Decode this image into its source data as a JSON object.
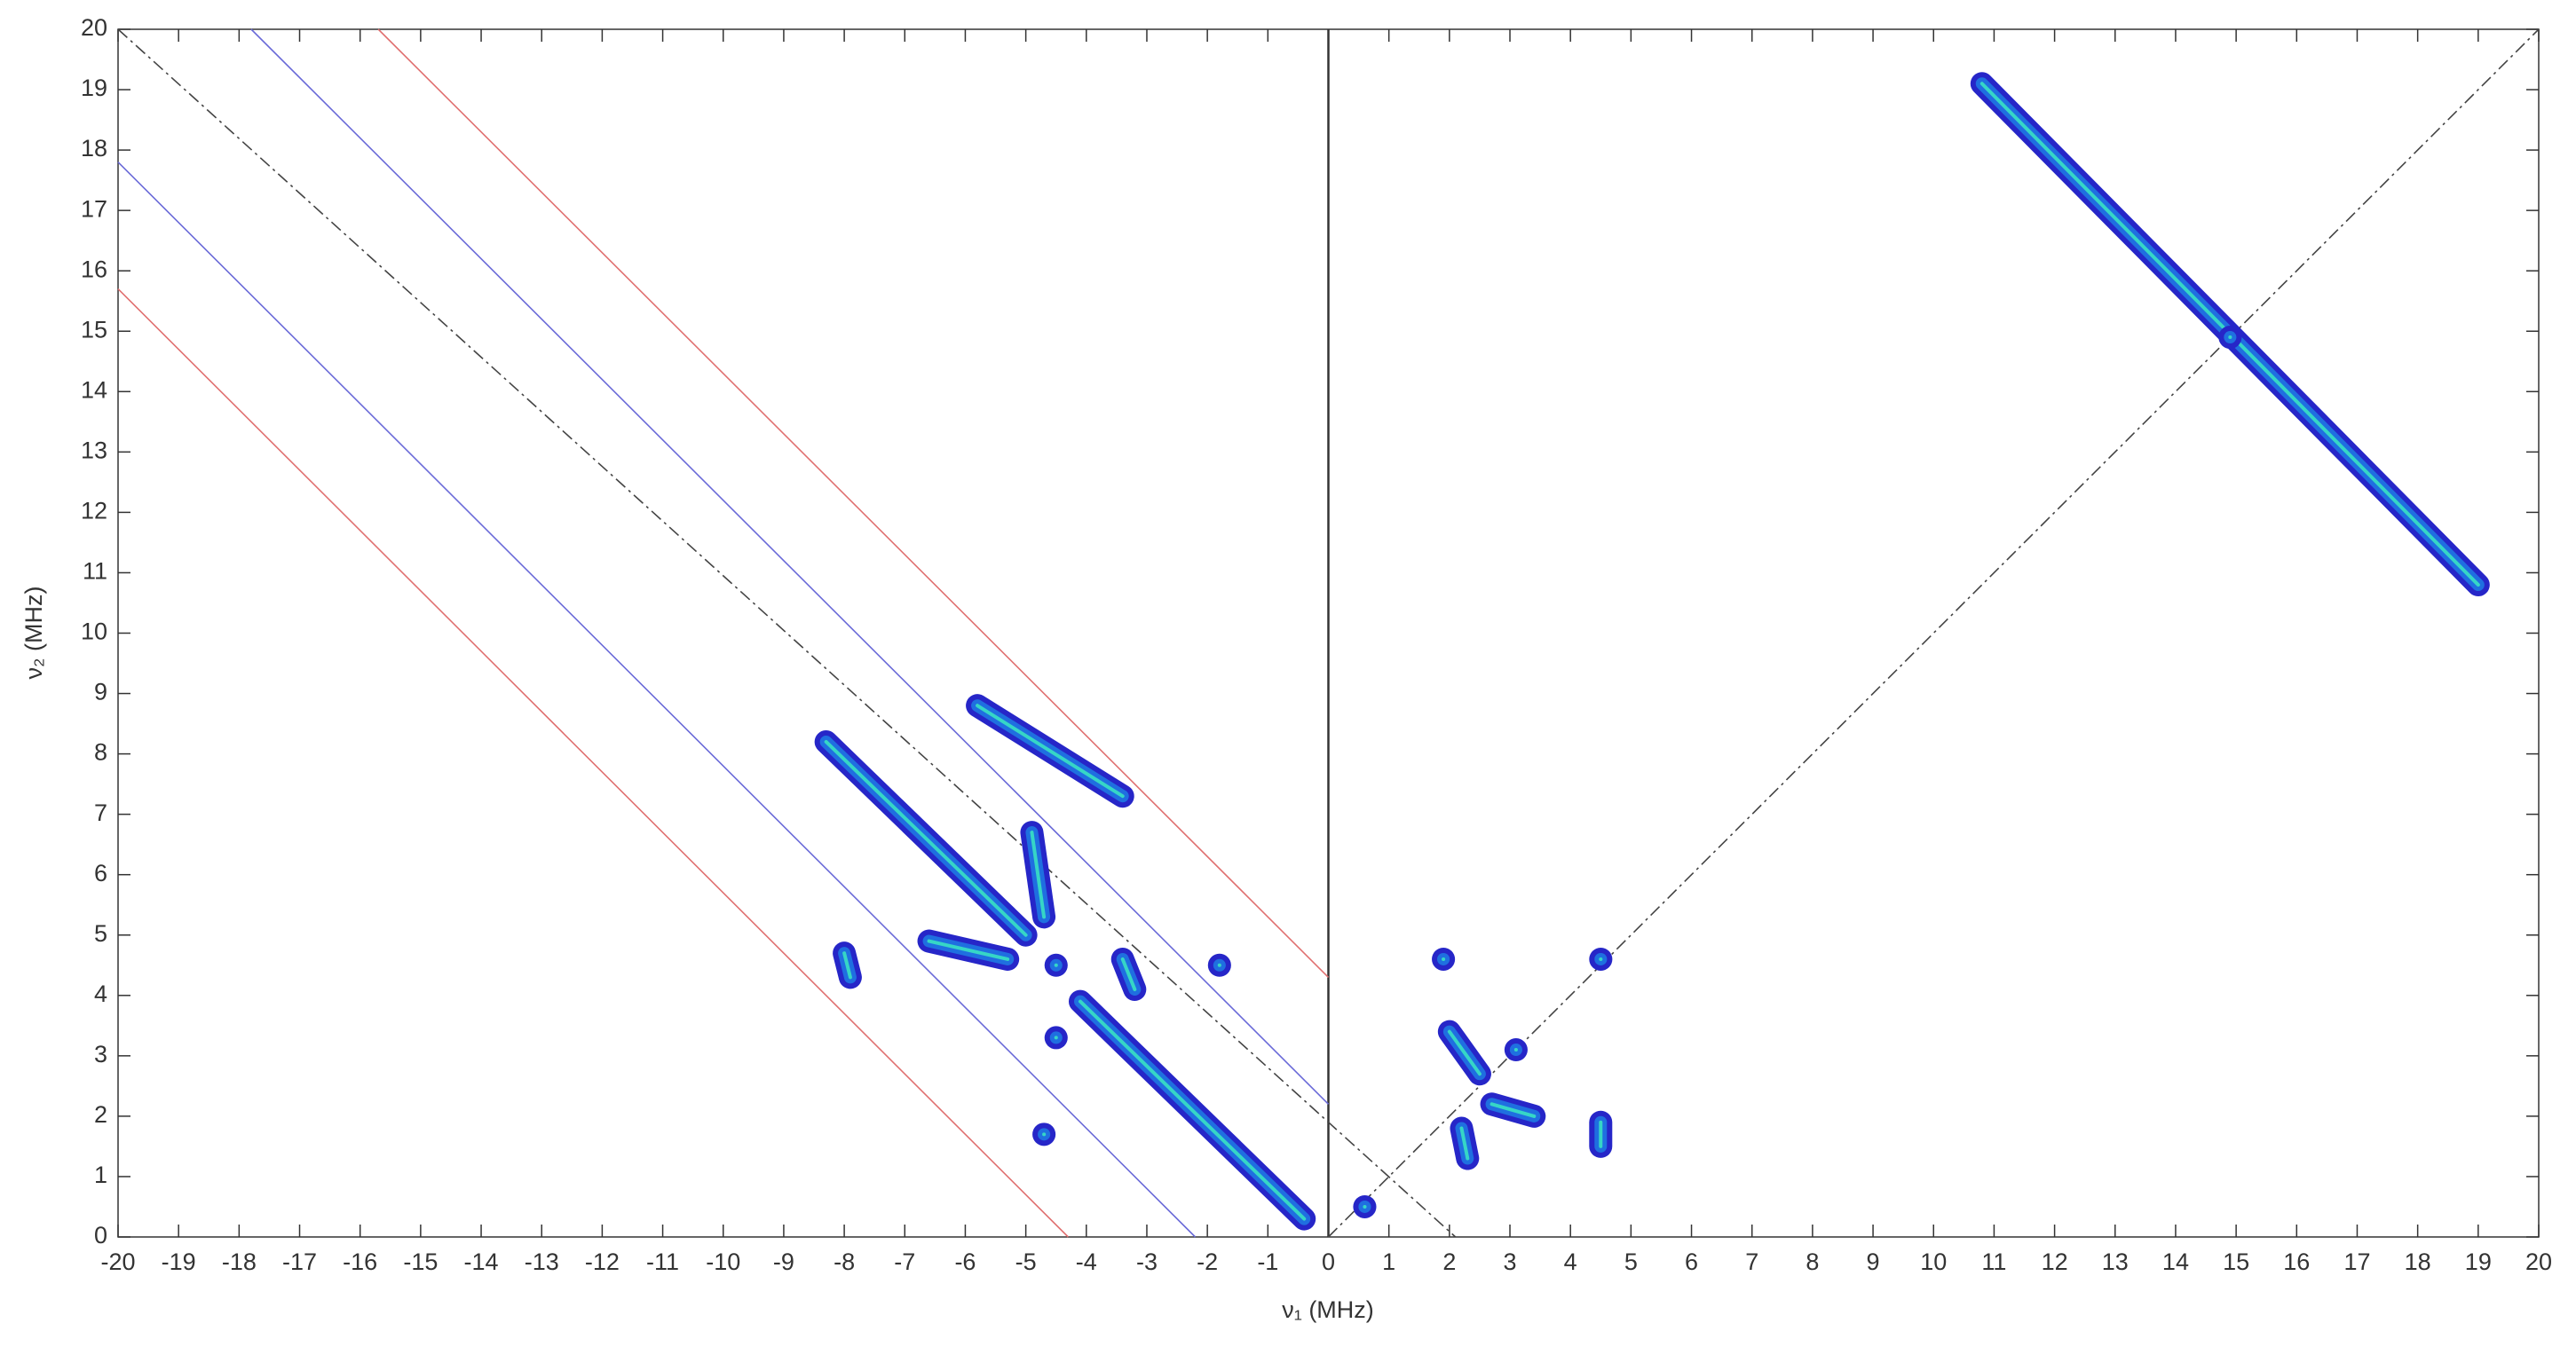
{
  "chart_data": {
    "type": "contour",
    "xlabel": "ν₁ (MHz)",
    "ylabel": "ν₂ (MHz)",
    "xlim": [
      -20,
      20
    ],
    "ylim": [
      0,
      20
    ],
    "xticks": [
      -20,
      -19,
      -18,
      -17,
      -16,
      -15,
      -14,
      -13,
      -12,
      -11,
      -10,
      -9,
      -8,
      -7,
      -6,
      -5,
      -4,
      -3,
      -2,
      -1,
      0,
      1,
      2,
      3,
      4,
      5,
      6,
      7,
      8,
      9,
      10,
      11,
      12,
      13,
      14,
      15,
      16,
      17,
      18,
      19,
      20
    ],
    "yticks": [
      0,
      1,
      2,
      3,
      4,
      5,
      6,
      7,
      8,
      9,
      10,
      11,
      12,
      13,
      14,
      15,
      16,
      17,
      18,
      19,
      20
    ],
    "reference_lines": [
      {
        "x": [
          0,
          0
        ],
        "y": [
          0,
          20
        ],
        "color": "#333333",
        "style": "solid"
      },
      {
        "x": [
          -20,
          2.1
        ],
        "y": [
          20,
          0
        ],
        "color": "#444444",
        "style": "dashdot"
      },
      {
        "x": [
          0,
          20
        ],
        "y": [
          0,
          20
        ],
        "color": "#444444",
        "style": "dashdot"
      },
      {
        "x": [
          -17.8,
          0
        ],
        "y": [
          20,
          2.2
        ],
        "color": "#6a6ad8",
        "style": "solid"
      },
      {
        "x": [
          -20,
          -2.2
        ],
        "y": [
          17.8,
          0
        ],
        "color": "#6a6ad8",
        "style": "solid"
      },
      {
        "x": [
          -15.7,
          0
        ],
        "y": [
          20,
          4.3
        ],
        "color": "#e07070",
        "style": "solid"
      },
      {
        "x": [
          -20,
          -4.3
        ],
        "y": [
          15.7,
          0
        ],
        "color": "#e07070",
        "style": "solid"
      }
    ],
    "peaks": [
      {
        "x": [
          10.8,
          19.0
        ],
        "y": [
          19.1,
          10.8
        ]
      },
      {
        "x": [
          14.9
        ],
        "y": [
          14.9
        ]
      },
      {
        "x": [
          -8.3,
          -5.0
        ],
        "y": [
          8.2,
          5.0
        ]
      },
      {
        "x": [
          -5.8,
          -3.4
        ],
        "y": [
          8.8,
          7.3
        ]
      },
      {
        "x": [
          -4.9,
          -4.7
        ],
        "y": [
          6.7,
          5.3
        ]
      },
      {
        "x": [
          -6.6,
          -5.3
        ],
        "y": [
          4.9,
          4.6
        ]
      },
      {
        "x": [
          -4.5
        ],
        "y": [
          4.5
        ]
      },
      {
        "x": [
          -3.4,
          -3.2
        ],
        "y": [
          4.6,
          4.1
        ]
      },
      {
        "x": [
          -1.8
        ],
        "y": [
          4.5
        ]
      },
      {
        "x": [
          -4.1,
          -0.4
        ],
        "y": [
          3.9,
          0.3
        ]
      },
      {
        "x": [
          -8.0,
          -7.9
        ],
        "y": [
          4.7,
          4.3
        ]
      },
      {
        "x": [
          -4.5
        ],
        "y": [
          3.3
        ]
      },
      {
        "x": [
          -4.7
        ],
        "y": [
          1.7
        ]
      },
      {
        "x": [
          0.6
        ],
        "y": [
          0.5
        ]
      },
      {
        "x": [
          2.0,
          2.5
        ],
        "y": [
          3.4,
          2.7
        ]
      },
      {
        "x": [
          3.1
        ],
        "y": [
          3.1
        ]
      },
      {
        "x": [
          2.7,
          3.4
        ],
        "y": [
          2.2,
          2.0
        ]
      },
      {
        "x": [
          1.9
        ],
        "y": [
          4.6
        ]
      },
      {
        "x": [
          4.5
        ],
        "y": [
          4.6
        ]
      },
      {
        "x": [
          4.5,
          4.5
        ],
        "y": [
          1.9,
          1.5
        ]
      },
      {
        "x": [
          2.2,
          2.3
        ],
        "y": [
          1.8,
          1.3
        ]
      }
    ],
    "colors": [
      "#2626c8",
      "#1f6fe0",
      "#36d6c6"
    ]
  }
}
